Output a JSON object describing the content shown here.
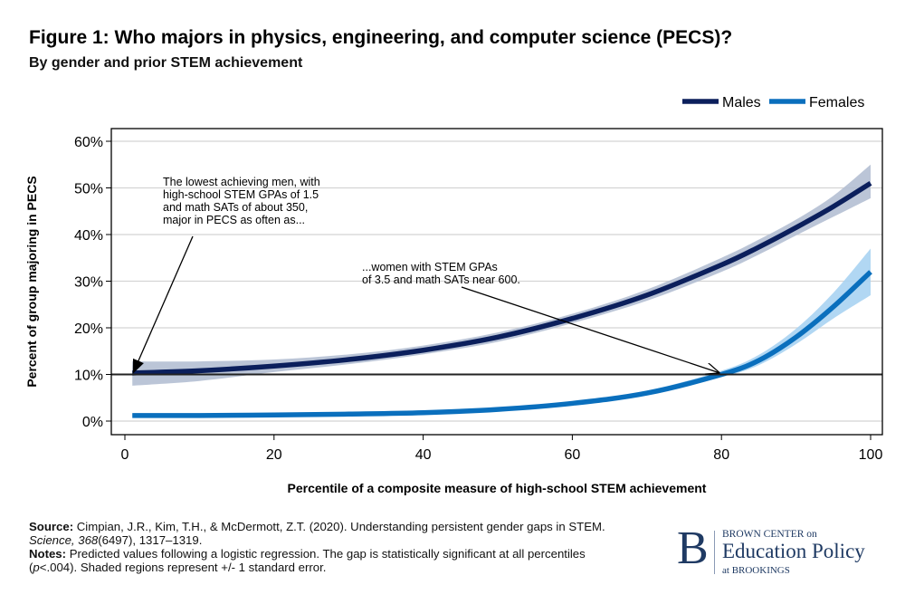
{
  "chart_data": {
    "type": "line",
    "title": "Figure 1: Who majors in physics, engineering, and computer science (PECS)?",
    "subtitle": "By gender and prior STEM achievement",
    "xlabel": "Percentile of a composite measure of high-school STEM achievement",
    "ylabel": "Percent of group majoring in PECS",
    "xlim": [
      0,
      100
    ],
    "ylim": [
      0,
      60
    ],
    "xticks": [
      "0",
      "20",
      "40",
      "60",
      "80",
      "100"
    ],
    "yticks": [
      "0%",
      "10%",
      "20%",
      "30%",
      "40%",
      "50%",
      "60%"
    ],
    "grid": true,
    "legend": "top-right",
    "reference_line": 10,
    "x": [
      1,
      10,
      20,
      30,
      40,
      50,
      60,
      70,
      80,
      85,
      90,
      95,
      100
    ],
    "series": [
      {
        "name": "Males",
        "color": "#0b1f5c",
        "band_color": "#b4bfd3",
        "values": [
          10.3,
          10.8,
          11.8,
          13.2,
          15.2,
          18,
          22,
          27,
          33.5,
          37.3,
          41.5,
          46,
          51
        ],
        "lower": [
          7.6,
          8.6,
          10.5,
          12.2,
          14.3,
          17,
          21,
          25.8,
          32,
          35.7,
          39.8,
          43.8,
          47.8
        ],
        "upper": [
          12.8,
          12.8,
          13.2,
          14.3,
          16.2,
          19,
          23,
          28.2,
          35,
          38.9,
          43.2,
          48.3,
          55
        ]
      },
      {
        "name": "Females",
        "color": "#0a6fbd",
        "band_color": "#a9d3f2",
        "values": [
          1.2,
          1.2,
          1.3,
          1.5,
          1.8,
          2.5,
          3.8,
          6,
          10,
          13,
          18,
          24.5,
          32
        ],
        "lower": [
          0.9,
          0.9,
          1.0,
          1.2,
          1.5,
          2.2,
          3.5,
          5.6,
          9.4,
          12,
          16.5,
          22,
          27
        ],
        "upper": [
          1.5,
          1.5,
          1.6,
          1.8,
          2.1,
          2.8,
          4.1,
          6.5,
          10.8,
          14.2,
          19.8,
          27.5,
          37
        ]
      }
    ],
    "annotations": [
      {
        "text": [
          "The lowest achieving men, with",
          "high-school STEM GPAs of 1.5",
          "and math SATs of about 350,",
          "major in PECS as often as..."
        ],
        "arrow_to": [
          1,
          10
        ]
      },
      {
        "text": [
          "...women with STEM GPAs",
          "of 3.5 and math SATs near 600."
        ],
        "arrow_to": [
          80,
          10
        ]
      }
    ]
  },
  "footer": {
    "source_label": "Source:",
    "source_text": " Cimpian, J.R., Kim, T.H., & McDermott, Z.T. (2020). Understanding persistent gender gaps in STEM. ",
    "journal": "Science, 368",
    "issue": "(6497), 1317–1319.",
    "notes_label": "Notes:",
    "notes_text": " Predicted values following a logistic regression. The gap is statistically significant at all percentiles (",
    "p": "p",
    "notes_tail": "<.004). Shaded regions represent +/- 1 standard error."
  },
  "logo": {
    "letter": "B",
    "line1": "BROWN CENTER on",
    "line2": "Education Policy",
    "line3": "at BROOKINGS"
  }
}
